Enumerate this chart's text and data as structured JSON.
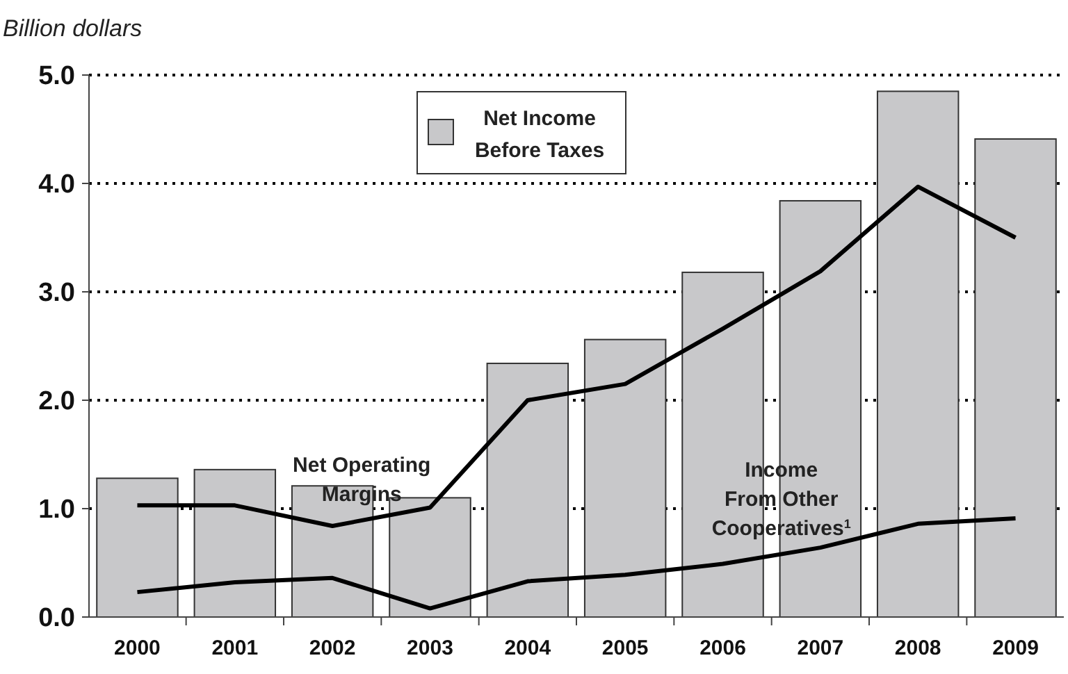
{
  "chart_data": {
    "type": "bar",
    "ylabel": "Billion dollars",
    "categories": [
      "2000",
      "2001",
      "2002",
      "2003",
      "2004",
      "2005",
      "2006",
      "2007",
      "2008",
      "2009"
    ],
    "series": [
      {
        "name": "Net Income Before Taxes",
        "color": "#c8c8ca",
        "values": [
          1.28,
          1.36,
          1.21,
          1.1,
          2.34,
          2.56,
          3.18,
          3.84,
          4.85,
          4.41
        ]
      },
      {
        "name": "Net Operating Margins",
        "type": "line",
        "color": "#000000",
        "values": [
          1.03,
          1.03,
          0.84,
          1.01,
          2.0,
          2.15,
          2.66,
          3.19,
          3.97,
          3.5
        ]
      },
      {
        "name": "Income From Other Cooperatives$^{1}$",
        "type": "line",
        "color": "#000000",
        "values": [
          0.23,
          0.32,
          0.36,
          0.08,
          0.33,
          0.39,
          0.49,
          0.64,
          0.86,
          0.91
        ]
      }
    ],
    "ylim": [
      0,
      5
    ],
    "yticks": [
      {
        "value": 0,
        "label": "0.0"
      },
      {
        "value": 1,
        "label": "1.0"
      },
      {
        "value": 2,
        "label": "2.0"
      },
      {
        "value": 3,
        "label": "3.0"
      },
      {
        "value": 4,
        "label": "4.0"
      },
      {
        "value": 5,
        "label": "5.0"
      }
    ],
    "grid": "y",
    "legend": "top",
    "marker": "none",
    "line_style": "solid"
  }
}
